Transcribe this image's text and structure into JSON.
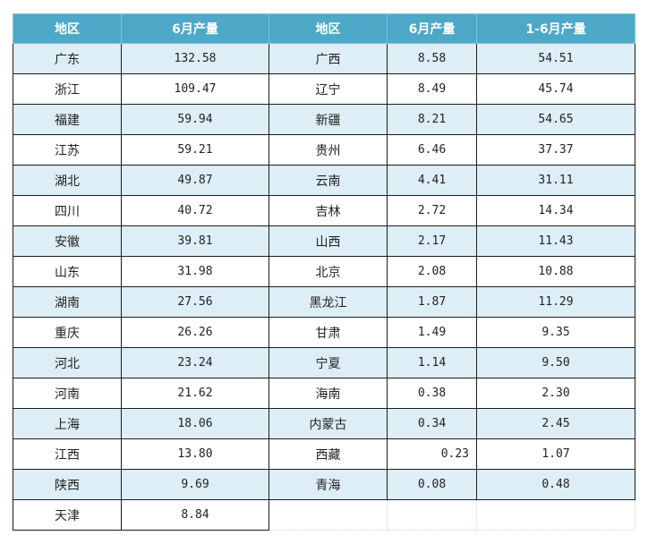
{
  "headers": [
    "地区",
    "6月产量",
    "地区",
    "6月产量",
    "1-6月产量"
  ],
  "rows": [
    {
      "left_region": "广东",
      "left_june": "132.58",
      "right_region": "广西",
      "right_june": "8.58",
      "right_ytd": "54.51"
    },
    {
      "left_region": "浙江",
      "left_june": "109.47",
      "right_region": "辽宁",
      "right_june": "8.49",
      "right_ytd": "45.74"
    },
    {
      "left_region": "福建",
      "left_june": "59.94",
      "right_region": "新疆",
      "right_june": "8.21",
      "right_ytd": "54.65"
    },
    {
      "left_region": "江苏",
      "left_june": "59.21",
      "right_region": "贵州",
      "right_june": "6.46",
      "right_ytd": "37.37"
    },
    {
      "left_region": "湖北",
      "left_june": "49.87",
      "right_region": "云南",
      "right_june": "4.41",
      "right_ytd": "31.11"
    },
    {
      "left_region": "四川",
      "left_june": "40.72",
      "right_region": "吉林",
      "right_june": "2.72",
      "right_ytd": "14.34"
    },
    {
      "left_region": "安徽",
      "left_june": "39.81",
      "right_region": "山西",
      "right_june": "2.17",
      "right_ytd": "11.43"
    },
    {
      "left_region": "山东",
      "left_june": "31.98",
      "right_region": "北京",
      "right_june": "2.08",
      "right_ytd": "10.88"
    },
    {
      "left_region": "湖南",
      "left_june": "27.56",
      "right_region": "黑龙江",
      "right_june": "1.87",
      "right_ytd": "11.29"
    },
    {
      "left_region": "重庆",
      "left_june": "26.26",
      "right_region": "甘肃",
      "right_june": "1.49",
      "right_ytd": "9.35"
    },
    {
      "left_region": "河北",
      "left_june": "23.24",
      "right_region": "宁夏",
      "right_june": "1.14",
      "right_ytd": "9.50"
    },
    {
      "left_region": "河南",
      "left_june": "21.62",
      "right_region": "海南",
      "right_june": "0.38",
      "right_ytd": "2.30"
    },
    {
      "left_region": "上海",
      "left_june": "18.06",
      "right_region": "内蒙古",
      "right_june": "0.34",
      "right_ytd": "2.45"
    },
    {
      "left_region": "江西",
      "left_june": "13.80",
      "right_region": "西藏",
      "right_june": "0.23",
      "right_ytd": "1.07"
    },
    {
      "left_region": "陕西",
      "left_june": "9.69",
      "right_region": "青海",
      "right_june": "0.08",
      "right_ytd": "0.48"
    },
    {
      "left_region": "天津",
      "left_june": "8.84",
      "right_region": "",
      "right_june": "",
      "right_ytd": ""
    }
  ],
  "colors": {
    "header_bg": "#4ea8c8",
    "band_bg": "#ddeef6"
  }
}
